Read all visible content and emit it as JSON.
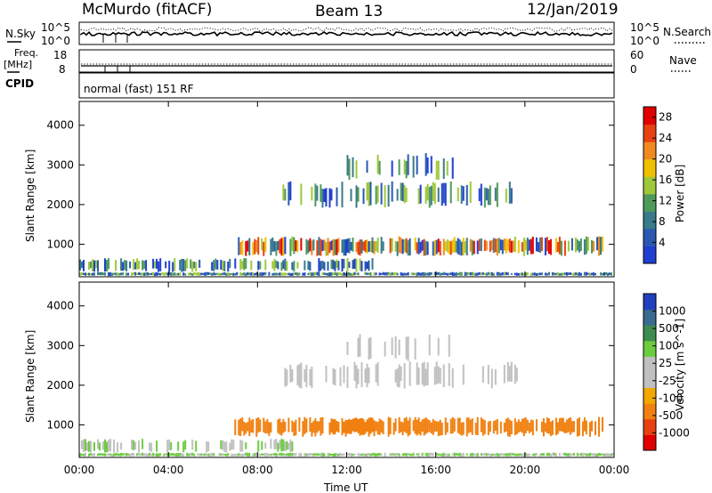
{
  "header": {
    "title": "McMurdo (fitACF)",
    "beam": "Beam 13",
    "date": "12/Jan/2019"
  },
  "top_panels": {
    "nsky_label": "N.Sky",
    "nsearch_label": "N.Search",
    "nsky_ticks": [
      "10^5",
      "10^0"
    ],
    "nsearch_ticks": [
      "10^5",
      "10^0"
    ],
    "freq_label": "Freq.",
    "freq_unit": "[MHz]",
    "freq_ticks": [
      "18",
      "8"
    ],
    "nave_label": "Nave",
    "nave_ticks": [
      "60",
      "0"
    ],
    "cpid_label": "CPID",
    "cpid_text": "normal (fast) 151 RF"
  },
  "colors": {
    "power_scale": [
      "#1f3fd0",
      "#2a58b0",
      "#3a7a8a",
      "#4f9a5a",
      "#9fc83a",
      "#f0c000",
      "#f08a20",
      "#e84010",
      "#e00000"
    ],
    "velocity_scale": [
      "#2040c0",
      "#3a6a90",
      "#3c8c50",
      "#6ccc40",
      "#c0c0c0",
      "#c0c0c0",
      "#f2a800",
      "#f08010",
      "#e84010",
      "#e00000"
    ]
  },
  "chart_data": [
    {
      "type": "heatmap",
      "title": "Power",
      "xlabel": "",
      "ylabel": "Slant Range [km]",
      "x_ticks": [
        "00:00",
        "04:00",
        "08:00",
        "12:00",
        "16:00",
        "20:00",
        "00:00"
      ],
      "y_ticks": [
        1000,
        2000,
        3000,
        4000
      ],
      "ylim": [
        180,
        4600
      ],
      "colorbar_label": "Power [dB]",
      "colorbar_ticks": [
        4,
        8,
        12,
        16,
        20,
        24,
        28
      ],
      "colorbar_range": [
        0,
        30
      ]
    },
    {
      "type": "heatmap",
      "title": "Velocity",
      "xlabel": "Time UT",
      "ylabel": "Slant Range [km]",
      "x_ticks": [
        "00:00",
        "04:00",
        "08:00",
        "12:00",
        "16:00",
        "20:00",
        "00:00"
      ],
      "y_ticks": [
        1000,
        2000,
        3000,
        4000
      ],
      "ylim": [
        180,
        4600
      ],
      "colorbar_label": "Velocity [m s^-1]",
      "colorbar_ticks": [
        1000,
        500,
        100,
        25,
        -25,
        -100,
        -500,
        -1000
      ]
    }
  ]
}
